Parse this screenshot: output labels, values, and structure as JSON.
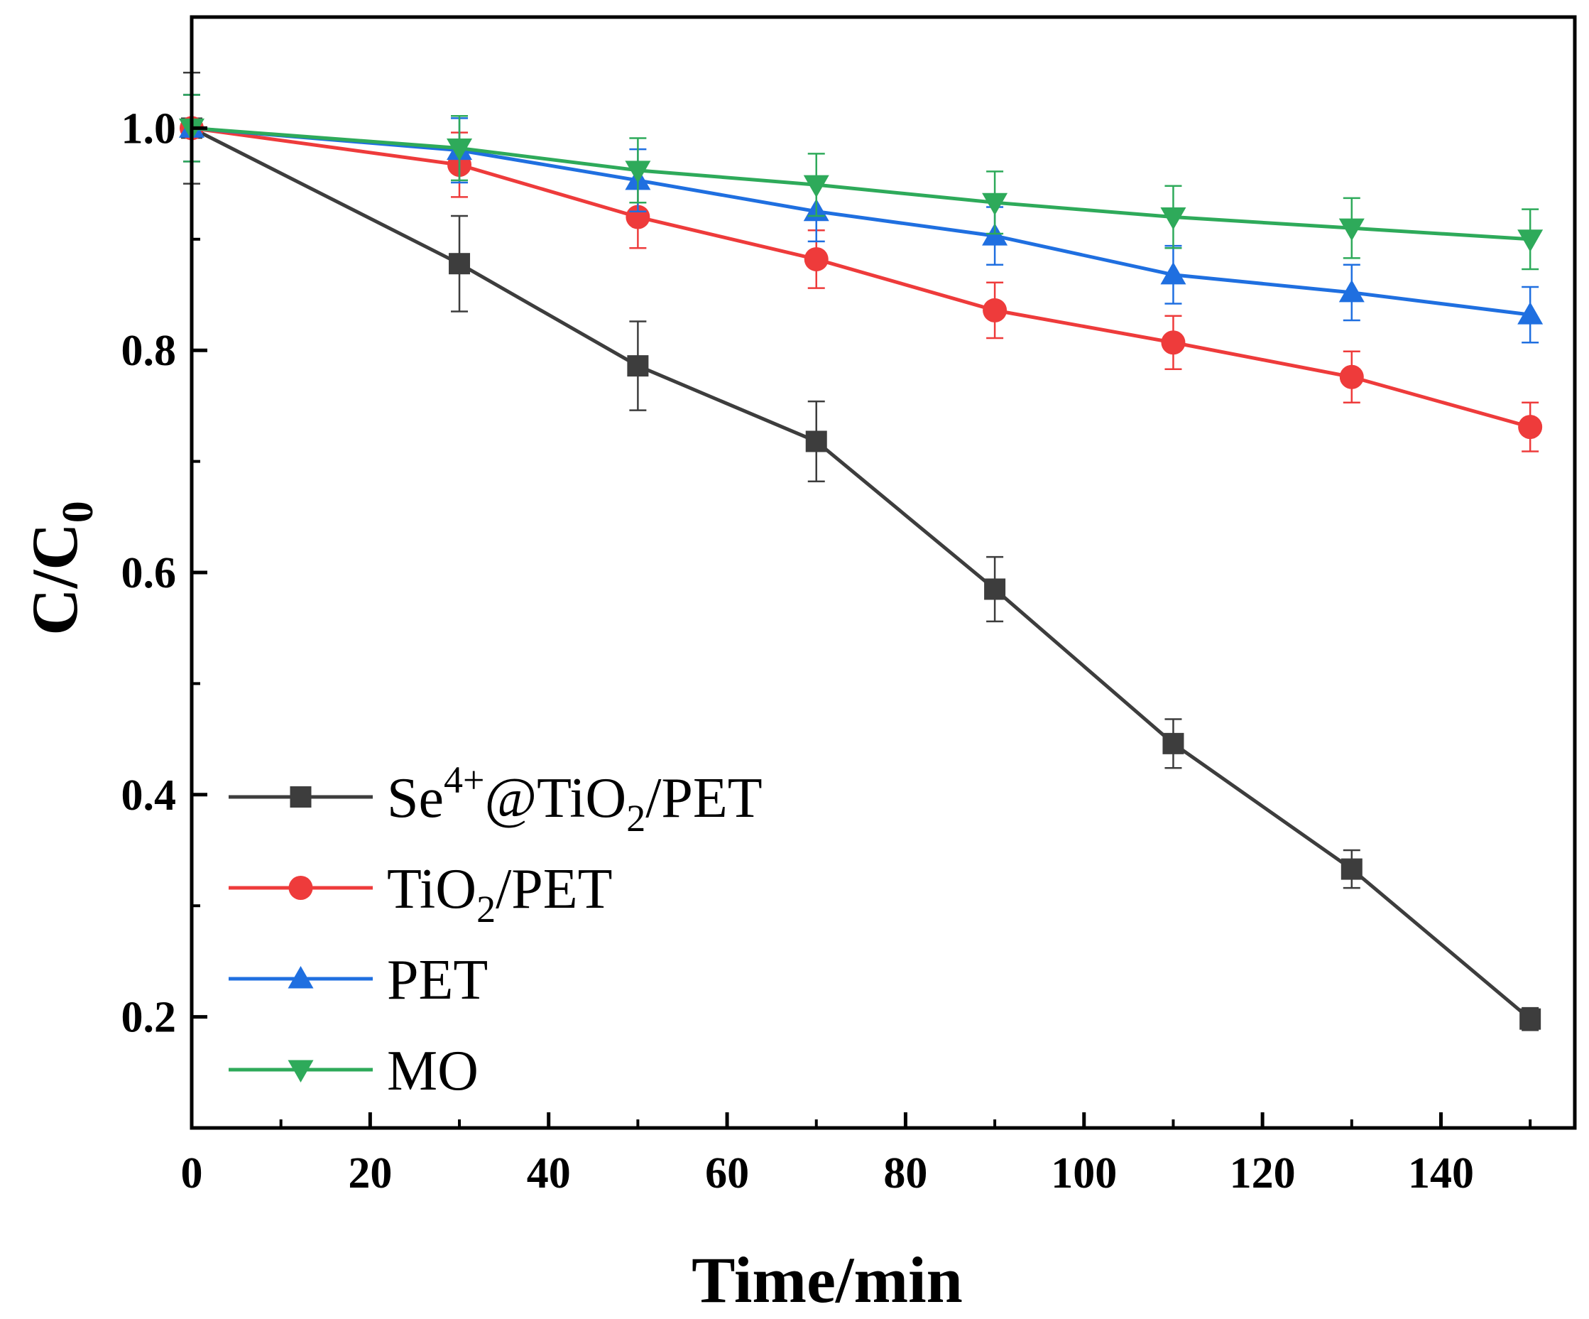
{
  "chart_data": {
    "type": "line",
    "title": "",
    "xlabel": "Time/min",
    "ylabel_main": "C/C",
    "ylabel_sub": "0",
    "xlim": [
      0,
      155
    ],
    "ylim": [
      0.1,
      1.1
    ],
    "x_ticks": [
      0,
      20,
      40,
      60,
      80,
      100,
      120,
      140
    ],
    "x_tick_labels": [
      "0",
      "20",
      "40",
      "60",
      "80",
      "100",
      "120",
      "140"
    ],
    "y_ticks": [
      0.2,
      0.4,
      0.6,
      0.8,
      1.0
    ],
    "y_tick_labels": [
      "0.2",
      "0.4",
      "0.6",
      "0.8",
      "1.0"
    ],
    "grid": false,
    "legend_position": "bottom-left",
    "x": [
      0,
      30,
      50,
      70,
      90,
      110,
      130,
      150
    ],
    "series": [
      {
        "name": "Se4+@TiO2/PET",
        "legend": {
          "base": "Se",
          "sup": "4+",
          "mid": "@TiO",
          "sub": "2",
          "tail": "/PET"
        },
        "color": "#3d3d3d",
        "marker": "square",
        "values": [
          1.0,
          0.878,
          0.786,
          0.718,
          0.585,
          0.446,
          0.333,
          0.198
        ],
        "errors": [
          0.05,
          0.043,
          0.04,
          0.036,
          0.029,
          0.022,
          0.017,
          0.01
        ]
      },
      {
        "name": "TiO2/PET",
        "legend": {
          "base": "TiO",
          "sup": "",
          "mid": "",
          "sub": "2",
          "tail": "/PET"
        },
        "color": "#ee3b3b",
        "marker": "circle",
        "values": [
          1.0,
          0.967,
          0.92,
          0.882,
          0.836,
          0.807,
          0.776,
          0.731
        ],
        "errors": [
          0.03,
          0.029,
          0.028,
          0.026,
          0.025,
          0.024,
          0.023,
          0.022
        ]
      },
      {
        "name": "PET",
        "legend": {
          "base": "PET",
          "sup": "",
          "mid": "",
          "sub": "",
          "tail": ""
        },
        "color": "#1f6fe0",
        "marker": "triangle-up",
        "values": [
          1.0,
          0.98,
          0.953,
          0.925,
          0.903,
          0.868,
          0.852,
          0.832
        ],
        "errors": [
          0.03,
          0.029,
          0.028,
          0.027,
          0.026,
          0.026,
          0.025,
          0.025
        ]
      },
      {
        "name": "MO",
        "legend": {
          "base": "MO",
          "sup": "",
          "mid": "",
          "sub": "",
          "tail": ""
        },
        "color": "#2eaa5a",
        "marker": "triangle-down",
        "values": [
          1.0,
          0.982,
          0.962,
          0.949,
          0.933,
          0.92,
          0.91,
          0.9
        ],
        "errors": [
          0.03,
          0.029,
          0.029,
          0.028,
          0.028,
          0.028,
          0.027,
          0.027
        ]
      }
    ]
  }
}
